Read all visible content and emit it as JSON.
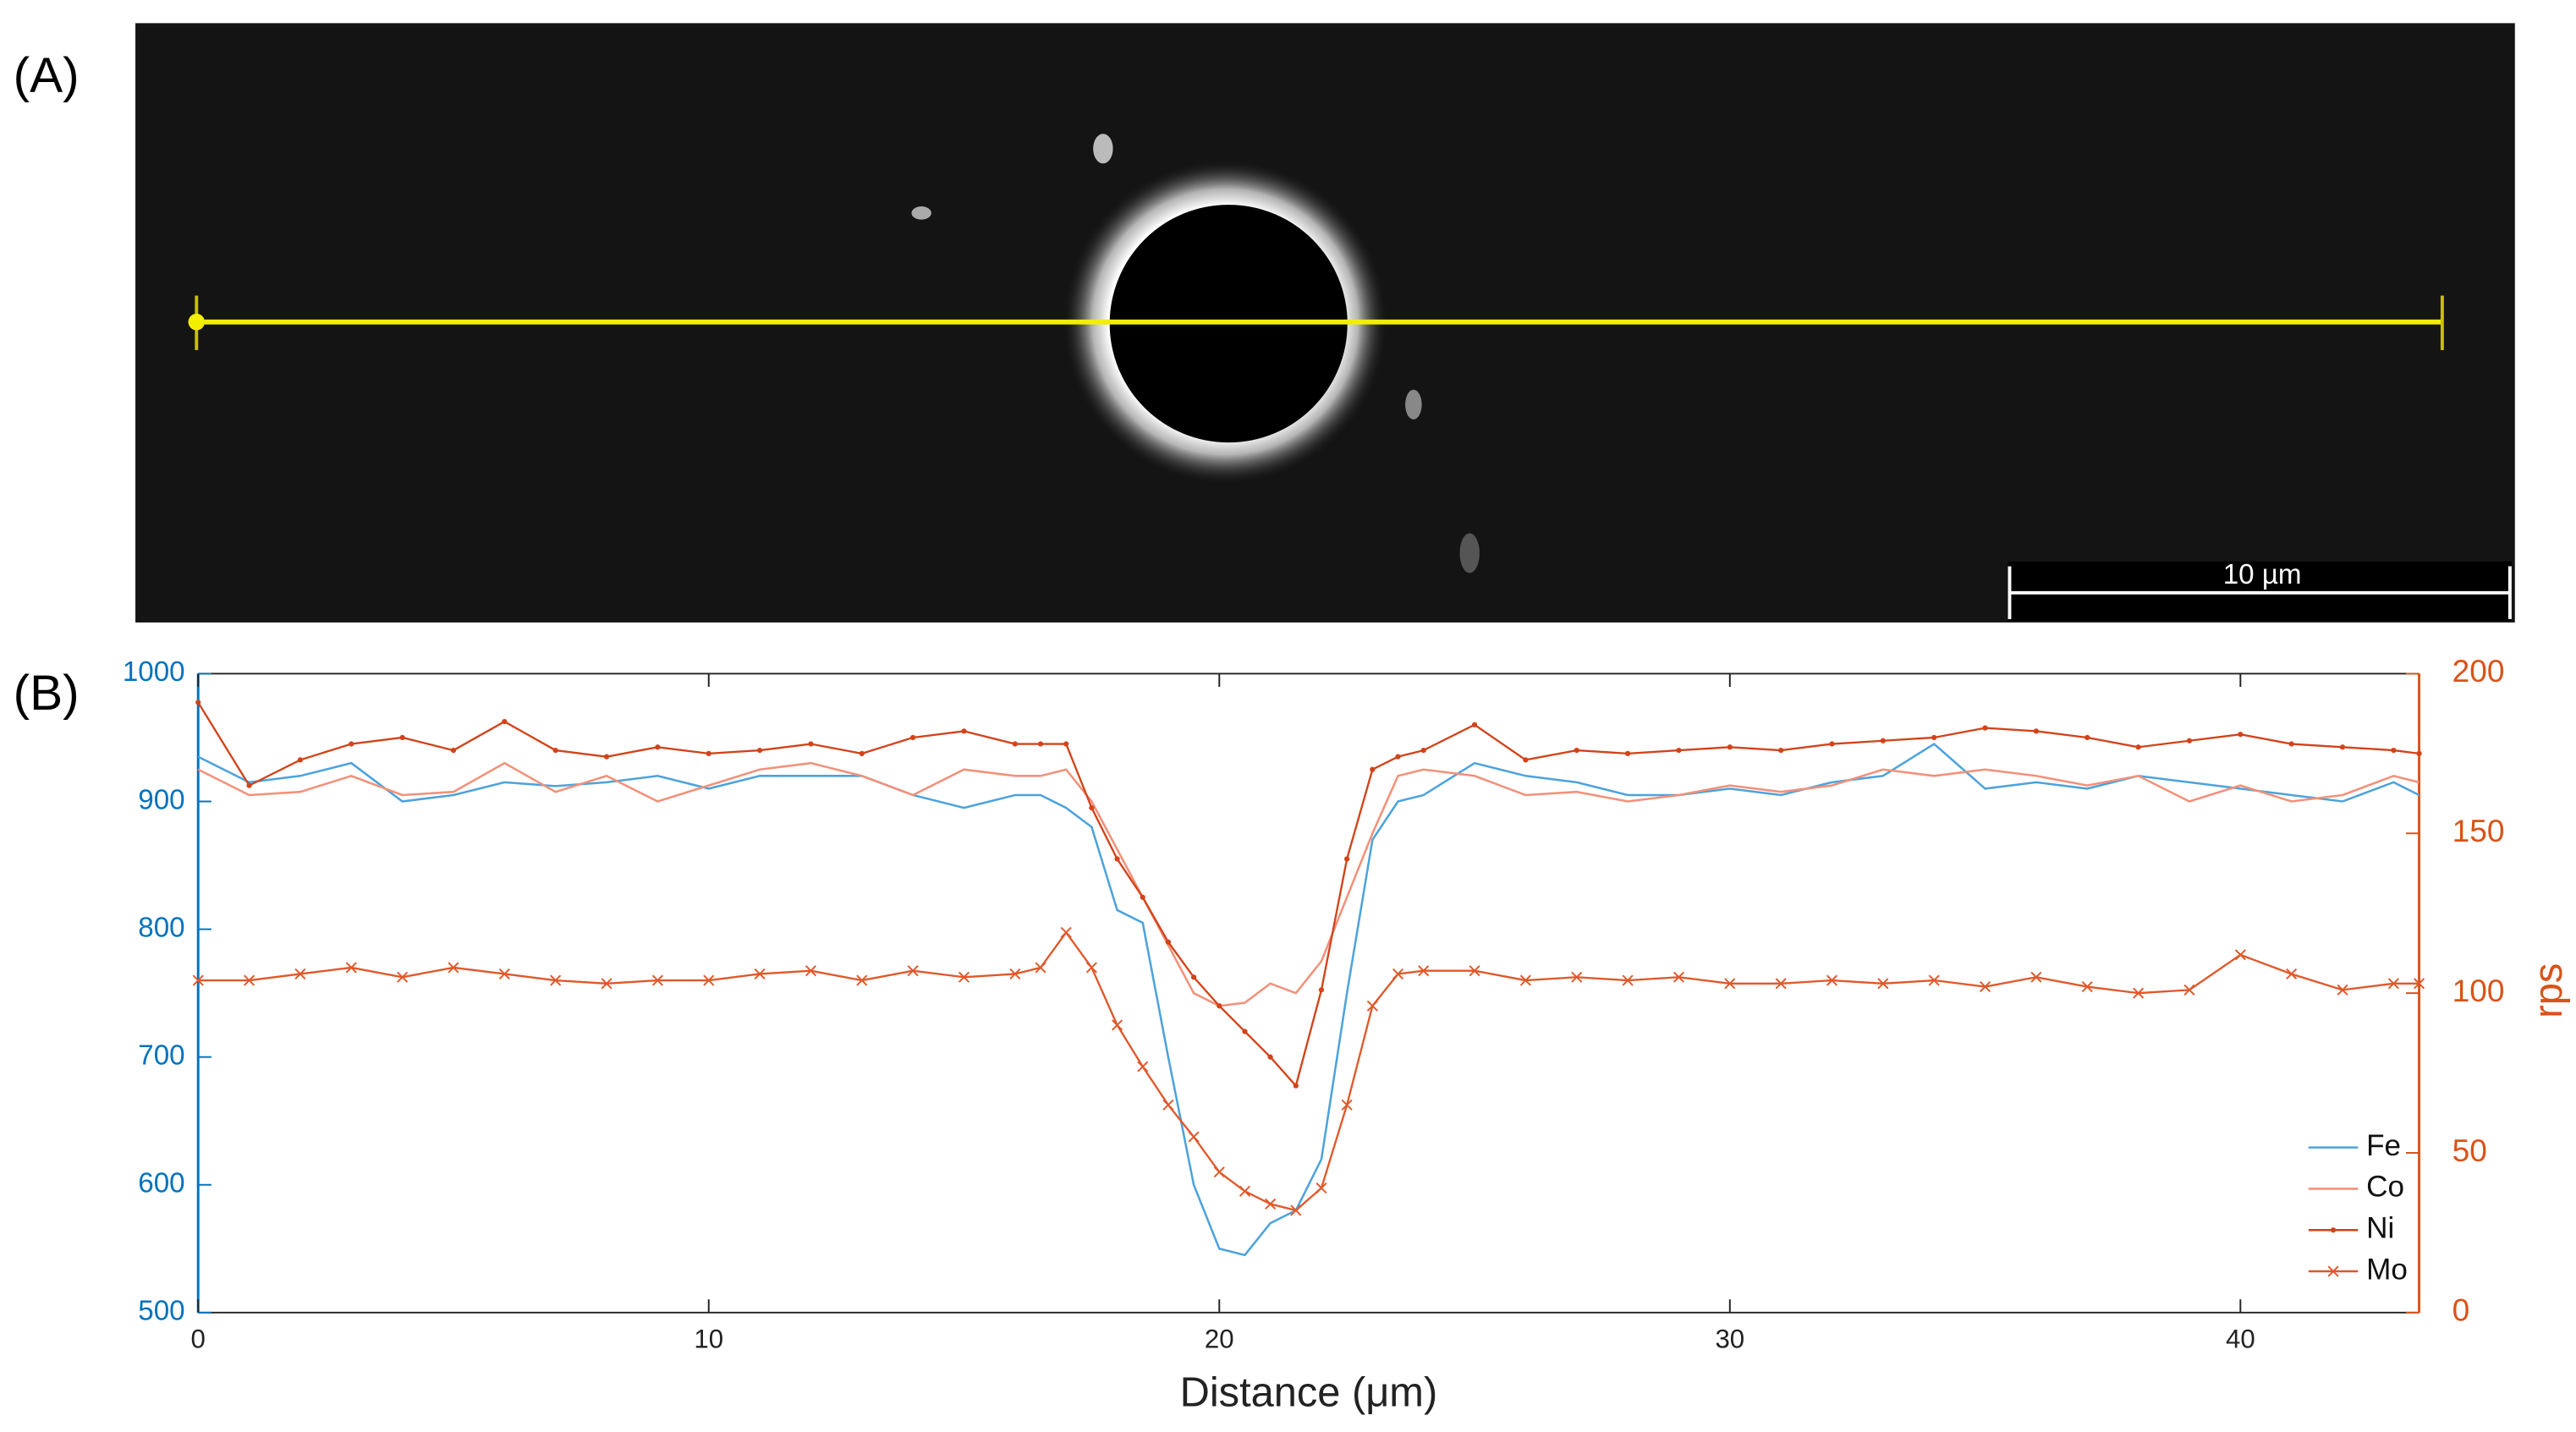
{
  "panel_labels": [
    "(A)",
    "(B)"
  ],
  "scale_bar": "10 µm",
  "chart_data": {
    "type": "line",
    "xlabel": "Distance (μm)",
    "y2label": "rps",
    "x": [
      0,
      1,
      2,
      3,
      4,
      5,
      6,
      7,
      8,
      9,
      10,
      11,
      12,
      13,
      14,
      15,
      16,
      16.5,
      17,
      17.5,
      18,
      18.5,
      19,
      19.5,
      20,
      20.5,
      21,
      21.5,
      22,
      22.5,
      23,
      23.5,
      24,
      25,
      26,
      27,
      28,
      29,
      30,
      31,
      32,
      33,
      34,
      35,
      36,
      37,
      38,
      39,
      40,
      41,
      42,
      43,
      43.5
    ],
    "xlim": [
      0,
      43.5
    ],
    "xticks": [
      0,
      10,
      20,
      30,
      40
    ],
    "ylim": [
      500,
      1000
    ],
    "yticks": [
      500,
      600,
      700,
      800,
      900,
      1000
    ],
    "y2lim": [
      0,
      200
    ],
    "y2ticks": [
      0,
      50,
      100,
      150,
      200
    ],
    "y_color": "#0072bd",
    "y2_color": "#d95319",
    "legend": "lower right",
    "series": [
      {
        "name": "Fe",
        "color": "#4da3dc",
        "marker": "none",
        "values": [
          935,
          915,
          920,
          930,
          900,
          905,
          915,
          912,
          915,
          920,
          910,
          920,
          920,
          920,
          905,
          895,
          905,
          905,
          895,
          880,
          815,
          805,
          700,
          600,
          550,
          545,
          570,
          580,
          620,
          750,
          870,
          900,
          905,
          930,
          920,
          915,
          905,
          905,
          910,
          905,
          915,
          920,
          945,
          910,
          915,
          910,
          920,
          915,
          910,
          905,
          900,
          915,
          905
        ]
      },
      {
        "name": "Co",
        "color": "#f2917a",
        "marker": "none",
        "axis": "y2",
        "values": [
          170,
          162,
          163,
          168,
          162,
          163,
          172,
          163,
          168,
          160,
          165,
          170,
          172,
          168,
          162,
          170,
          168,
          168,
          170,
          160,
          145,
          130,
          115,
          100,
          96,
          97,
          103,
          100,
          110,
          130,
          150,
          168,
          170,
          168,
          162,
          163,
          160,
          162,
          165,
          163,
          165,
          170,
          168,
          170,
          168,
          165,
          168,
          160,
          165,
          160,
          162,
          168,
          166
        ]
      },
      {
        "name": "Ni",
        "color": "#d2431a",
        "marker": "dot",
        "axis": "y2",
        "values": [
          191,
          165,
          173,
          178,
          180,
          176,
          185,
          176,
          174,
          177,
          175,
          176,
          178,
          175,
          180,
          182,
          178,
          178,
          178,
          158,
          142,
          130,
          116,
          105,
          96,
          88,
          80,
          71,
          101,
          142,
          170,
          174,
          176,
          184,
          173,
          176,
          175,
          176,
          177,
          176,
          178,
          179,
          180,
          183,
          182,
          180,
          177,
          179,
          181,
          178,
          177,
          176,
          175
        ]
      },
      {
        "name": "Mo",
        "color": "#e0582a",
        "marker": "x",
        "axis": "y2",
        "values": [
          104,
          104,
          106,
          108,
          105,
          108,
          106,
          104,
          103,
          104,
          104,
          106,
          107,
          104,
          107,
          105,
          106,
          108,
          119,
          108,
          90,
          77,
          65,
          55,
          44,
          38,
          34,
          32,
          39,
          65,
          96,
          106,
          107,
          107,
          104,
          105,
          104,
          105,
          103,
          103,
          104,
          103,
          104,
          102,
          105,
          102,
          100,
          101,
          112,
          106,
          101,
          103,
          103
        ]
      }
    ]
  }
}
